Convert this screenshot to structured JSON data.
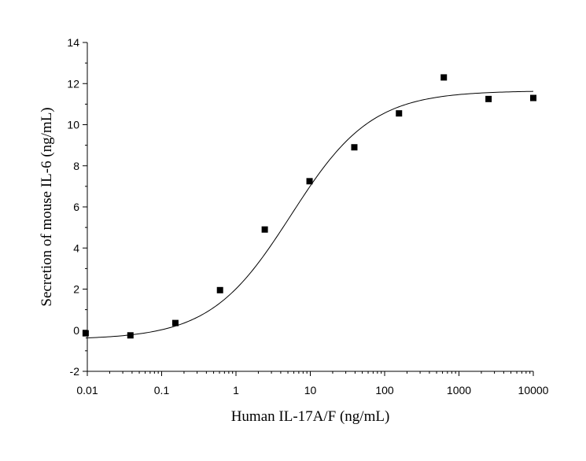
{
  "chart_data": {
    "type": "scatter",
    "xlabel": "Human IL-17A/F (ng/mL)",
    "ylabel": "Secretion of mouse IL-6 (ng/mL)",
    "x_scale": "log",
    "xlim": [
      0.01,
      10000
    ],
    "ylim": [
      -2,
      14
    ],
    "x_ticks": [
      0.01,
      0.1,
      1,
      10,
      100,
      1000,
      10000
    ],
    "x_tick_labels": [
      "0.01",
      "0.1",
      "1",
      "10",
      "100",
      "1000",
      "10000"
    ],
    "y_ticks": [
      -2,
      0,
      2,
      4,
      6,
      8,
      10,
      12,
      14
    ],
    "y_tick_labels": [
      "-2",
      "0",
      "2",
      "4",
      "6",
      "8",
      "10",
      "12",
      "14"
    ],
    "grid": false,
    "legend": "none",
    "series": [
      {
        "marker": "square",
        "x": [
          0.0095,
          0.038,
          0.153,
          0.61,
          2.44,
          9.77,
          39.1,
          156,
          625,
          2500,
          10000
        ],
        "y": [
          -0.15,
          -0.25,
          0.35,
          1.95,
          4.9,
          7.25,
          8.9,
          10.55,
          12.3,
          11.25,
          11.3
        ]
      }
    ],
    "fit_curve": {
      "model": "4PL",
      "bottom": -0.45,
      "top": 11.65,
      "ec50": 5.5,
      "hill": 0.8,
      "x_range": [
        0.0095,
        10000
      ]
    },
    "colors": {
      "marks": "#000000",
      "axes": "#000000",
      "background": "#ffffff"
    }
  }
}
